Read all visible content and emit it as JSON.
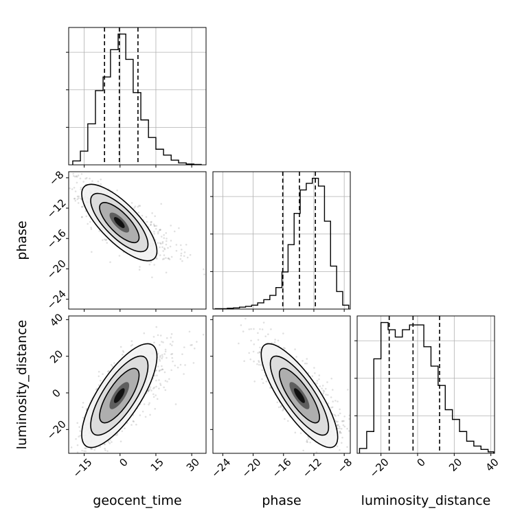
{
  "chart_data": {
    "type": "corner",
    "parameters": [
      "geocent_time",
      "phase",
      "luminosity_distance"
    ],
    "grid": true,
    "marginals": [
      {
        "parameter": "geocent_time",
        "quantiles": [
          -6.5,
          -0.3,
          7.5
        ],
        "bins": [
          -19.8,
          -16.6,
          -13.5,
          -10.3,
          -7.1,
          -4.0,
          -0.8,
          2.4,
          5.5,
          8.7,
          11.9,
          15.0,
          18.2,
          21.4,
          24.5,
          27.7,
          30.9,
          34.0
        ],
        "counts": [
          0.1,
          0.35,
          1.05,
          1.9,
          2.25,
          2.95,
          3.35,
          2.7,
          1.85,
          1.15,
          0.7,
          0.4,
          0.25,
          0.12,
          0.05,
          0.02,
          0.01
        ],
        "ticks": [
          -15,
          0,
          15,
          30
        ]
      },
      {
        "parameter": "phase",
        "quantiles": [
          -16.1,
          -13.9,
          -11.8
        ],
        "bins": [
          -25.0,
          -24.2,
          -23.4,
          -22.6,
          -21.8,
          -21.0,
          -20.2,
          -19.4,
          -18.6,
          -17.8,
          -17.0,
          -16.2,
          -15.4,
          -14.6,
          -13.8,
          -13.0,
          -12.2,
          -11.4,
          -10.6,
          -9.8,
          -9.0,
          -8.2,
          -7.4
        ],
        "counts": [
          0.01,
          0.01,
          0.02,
          0.03,
          0.05,
          0.07,
          0.1,
          0.16,
          0.24,
          0.35,
          0.55,
          0.95,
          1.65,
          2.45,
          3.05,
          3.22,
          3.35,
          3.15,
          2.25,
          1.1,
          0.45,
          0.1
        ],
        "ticks": [
          -24,
          -20,
          -16,
          -12,
          -8
        ]
      },
      {
        "parameter": "luminosity_distance",
        "quantiles": [
          -15.5,
          -2.5,
          12.0
        ],
        "bins": [
          -31.7,
          -27.8,
          -23.9,
          -20.0,
          -16.1,
          -12.2,
          -8.3,
          -4.4,
          -0.5,
          3.4,
          7.3,
          11.2,
          15.1,
          19.0,
          22.9,
          26.8,
          30.7,
          34.6,
          38.5,
          41.5
        ],
        "counts": [
          0.1,
          0.45,
          1.95,
          2.7,
          2.55,
          2.4,
          2.55,
          2.65,
          2.65,
          2.2,
          1.8,
          1.4,
          0.9,
          0.7,
          0.45,
          0.25,
          0.15,
          0.08,
          0.03
        ],
        "ticks": [
          -20,
          0,
          20,
          40
        ]
      }
    ],
    "joint": [
      {
        "x": "geocent_time",
        "y": "phase",
        "correlation": -0.75
      },
      {
        "x": "geocent_time",
        "y": "luminosity_distance",
        "correlation": 0.75
      },
      {
        "x": "phase",
        "y": "luminosity_distance",
        "correlation": -0.8
      }
    ],
    "axis_ranges": {
      "geocent_time": [
        -21.5,
        36
      ],
      "phase": [
        -25.3,
        -7.2
      ],
      "luminosity_distance": [
        -33,
        42
      ]
    },
    "tick_labels": {
      "geocent_time": [
        "−15",
        "0",
        "15",
        "30"
      ],
      "phase": [
        "−24",
        "−20",
        "−16",
        "−12",
        "−8"
      ],
      "luminosity_distance": [
        "−20",
        "0",
        "20",
        "40"
      ]
    },
    "labels": {
      "geocent_time": "geocent_time",
      "phase": "phase",
      "luminosity_distance": "luminosity_distance"
    }
  }
}
